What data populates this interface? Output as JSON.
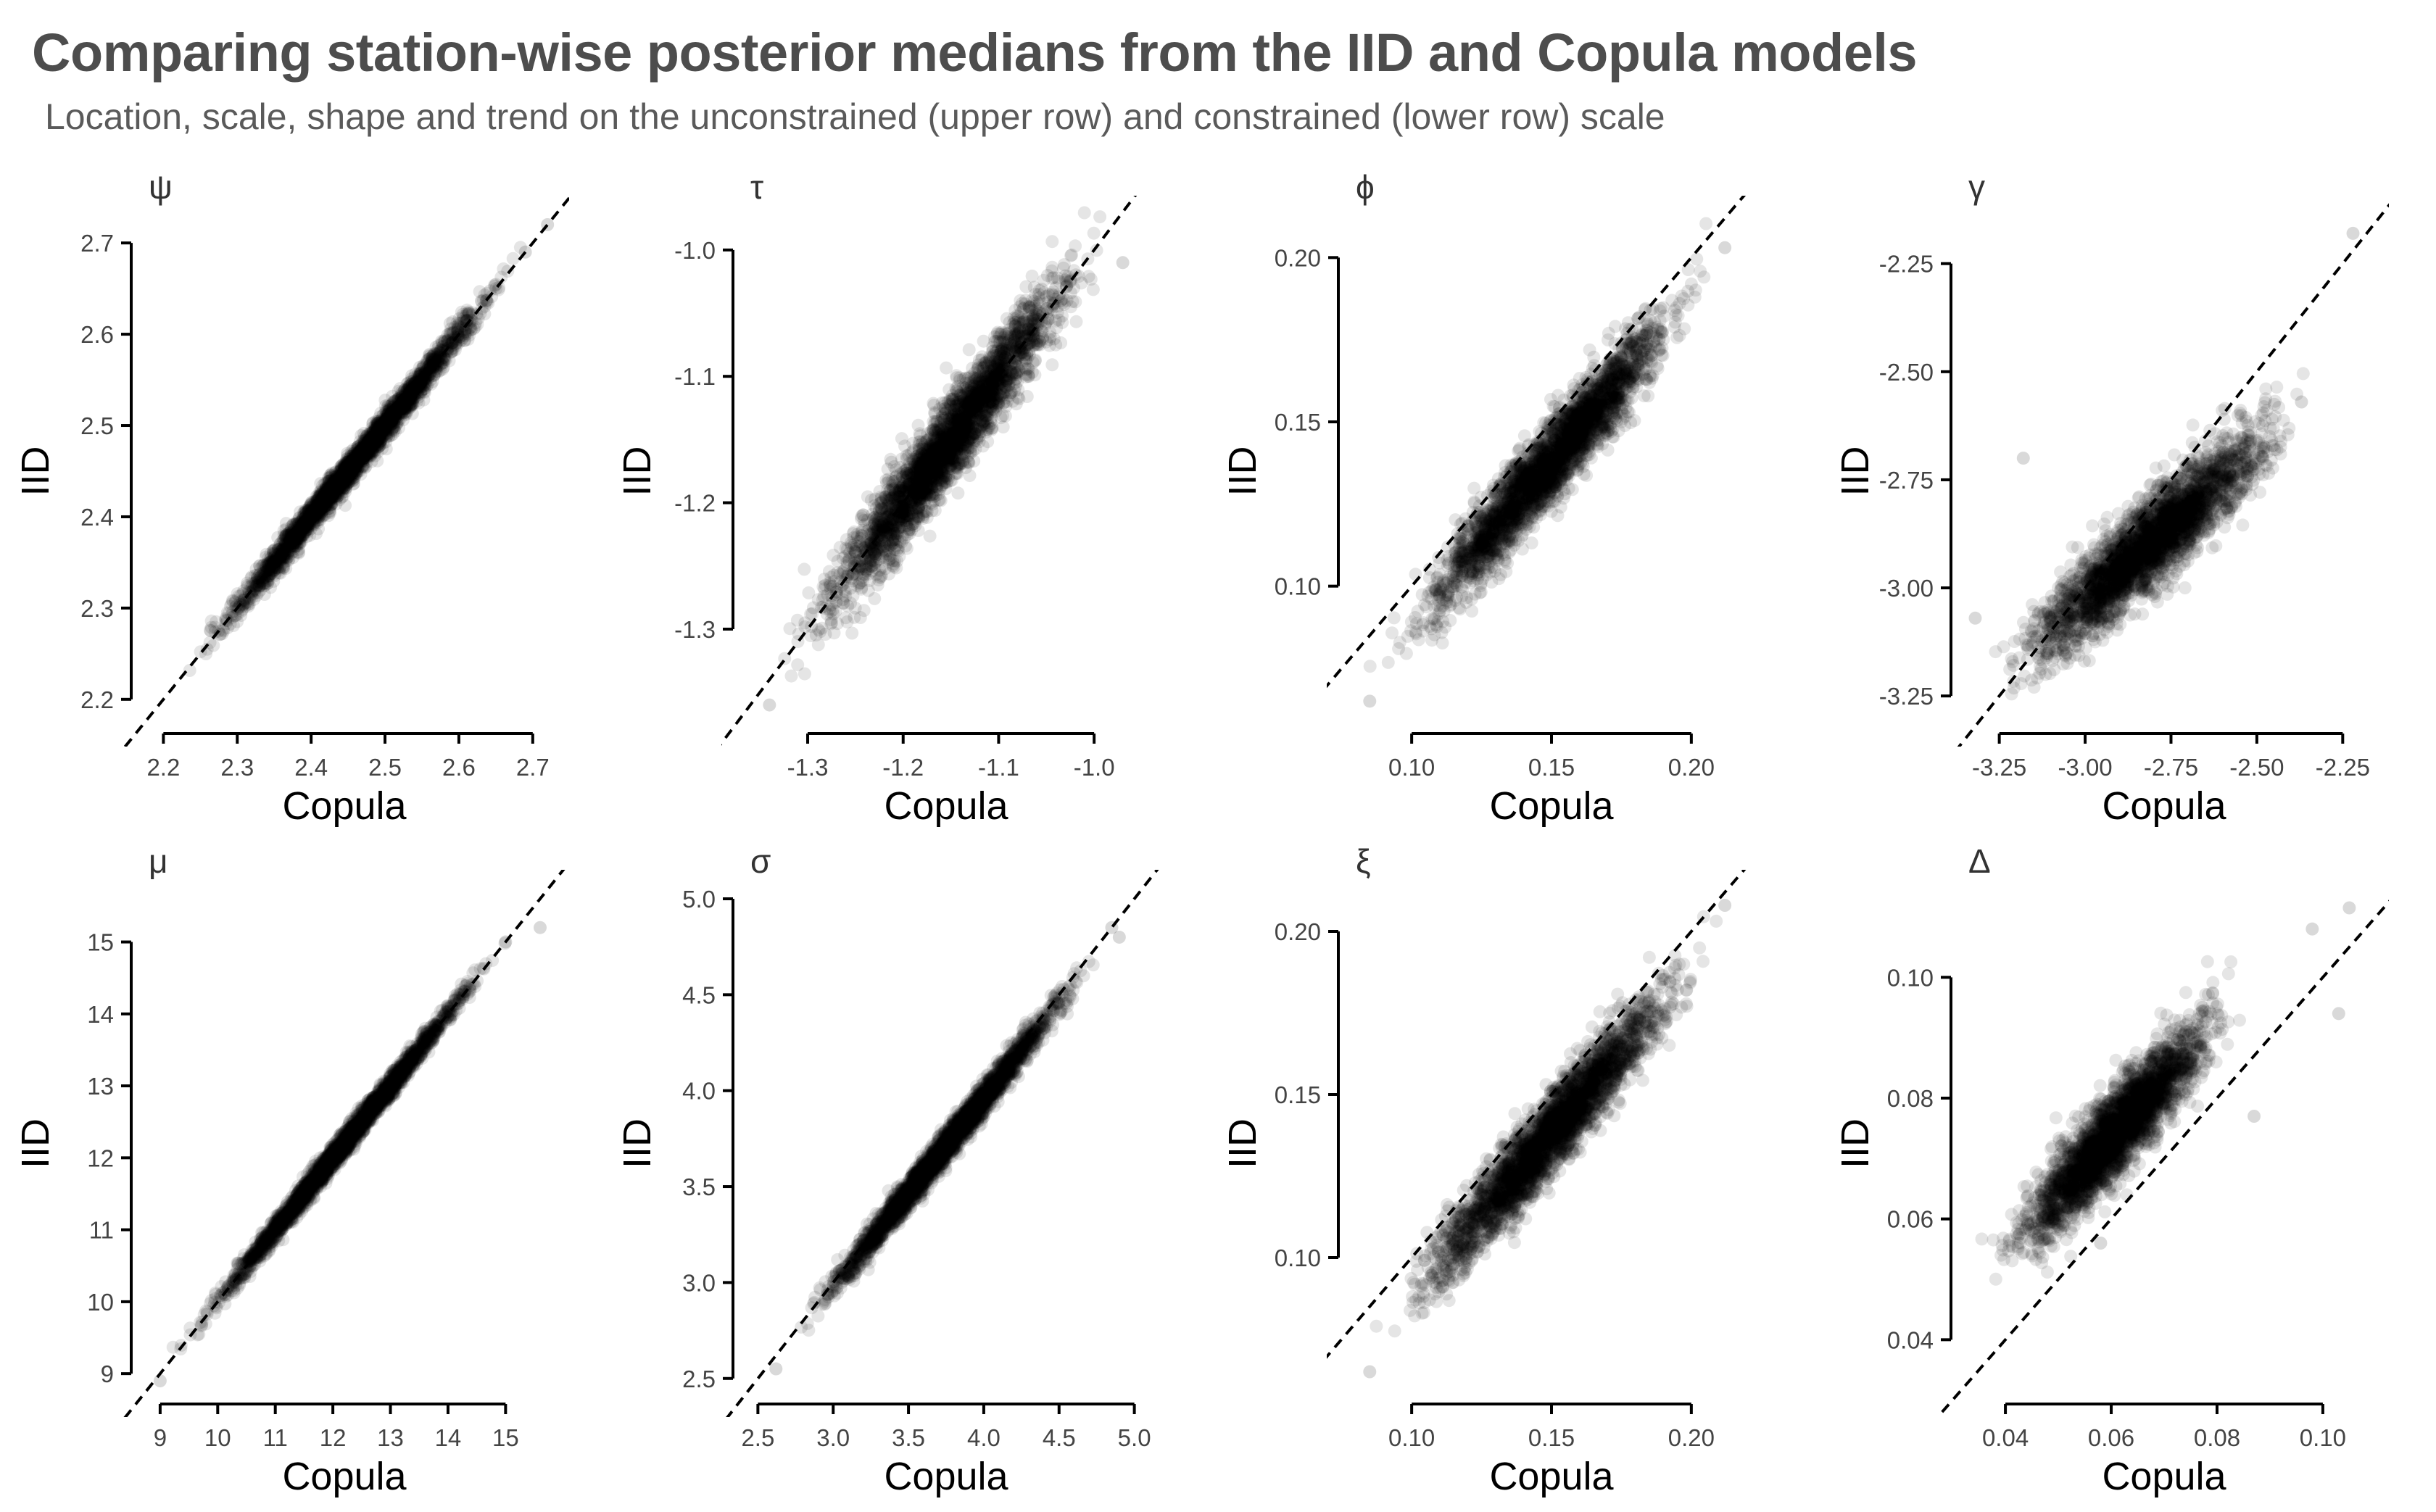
{
  "title": "Comparing station-wise posterior medians from the IID and Copula models",
  "subtitle": "Location, scale, shape and trend on the unconstrained (upper row) and constrained (lower row) scale",
  "chart_data": [
    {
      "type": "scatter",
      "panel_title": "ψ",
      "xlabel": "Copula",
      "ylabel": "IID",
      "xlim": [
        2.18,
        2.71
      ],
      "ylim": [
        2.18,
        2.72
      ],
      "xticks": [
        2.2,
        2.3,
        2.4,
        2.5,
        2.6,
        2.7
      ],
      "yticks": [
        2.2,
        2.3,
        2.4,
        2.5,
        2.6,
        2.7
      ],
      "xtick_labels": [
        "2.2",
        "2.3",
        "2.4",
        "2.5",
        "2.6",
        "2.7"
      ],
      "ytick_labels": [
        "2.2",
        "2.3",
        "2.4",
        "2.5",
        "2.6",
        "2.7"
      ],
      "reference_line": "y = x (dashed)",
      "n_points_approx": 3000,
      "cloud": {
        "x_range": [
          2.2,
          2.72
        ],
        "fit": {
          "intercept": 0.0,
          "slope": 1.0
        },
        "spread_sd": 0.008
      },
      "outliers": [
        [
          2.72,
          2.72
        ],
        [
          2.69,
          2.69
        ]
      ]
    },
    {
      "type": "scatter",
      "panel_title": "τ",
      "xlabel": "Copula",
      "ylabel": "IID",
      "xlim": [
        -1.36,
        -0.95
      ],
      "ylim": [
        -1.37,
        -0.98
      ],
      "xticks": [
        -1.3,
        -1.2,
        -1.1,
        -1.0
      ],
      "yticks": [
        -1.3,
        -1.2,
        -1.1,
        -1.0
      ],
      "xtick_labels": [
        "-1.3",
        "-1.2",
        "-1.1",
        "-1.0"
      ],
      "ytick_labels": [
        "-1.3",
        "-1.2",
        "-1.1",
        "-1.0"
      ],
      "reference_line": "y = x (dashed)",
      "n_points_approx": 3000,
      "cloud": {
        "x_range": [
          -1.34,
          -0.97
        ],
        "fit": {
          "intercept": 0.0,
          "slope": 1.0
        },
        "spread_sd": 0.016
      },
      "outliers": [
        [
          -0.97,
          -1.01
        ],
        [
          -1.34,
          -1.36
        ]
      ]
    },
    {
      "type": "scatter",
      "panel_title": "ϕ",
      "xlabel": "Copula",
      "ylabel": "IID",
      "xlim": [
        0.08,
        0.22
      ],
      "ylim": [
        0.06,
        0.21
      ],
      "xticks": [
        0.1,
        0.15,
        0.2
      ],
      "yticks": [
        0.1,
        0.15,
        0.2
      ],
      "xtick_labels": [
        "0.10",
        "0.15",
        "0.20"
      ],
      "ytick_labels": [
        "0.10",
        "0.15",
        "0.20"
      ],
      "reference_line": "y = x (dashed)",
      "n_points_approx": 3000,
      "cloud": {
        "x_range": [
          0.085,
          0.213
        ],
        "fit": {
          "intercept": -0.012,
          "slope": 1.0
        },
        "spread_sd": 0.006
      },
      "outliers": [
        [
          0.212,
          0.203
        ],
        [
          0.085,
          0.065
        ]
      ]
    },
    {
      "type": "scatter",
      "panel_title": "γ",
      "xlabel": "Copula",
      "ylabel": "IID",
      "xlim": [
        -3.34,
        -2.2
      ],
      "ylim": [
        -3.3,
        -2.16
      ],
      "xticks": [
        -3.25,
        -3.0,
        -2.75,
        -2.5,
        -2.25
      ],
      "yticks": [
        -3.25,
        -3.0,
        -2.75,
        -2.5,
        -2.25
      ],
      "xtick_labels": [
        "-3.25",
        "-3.00",
        "-2.75",
        "-2.50",
        "-2.25"
      ],
      "ytick_labels": [
        "-3.25",
        "-3.00",
        "-2.75",
        "-2.50",
        "-2.25"
      ],
      "reference_line": "y = x (dashed)",
      "n_points_approx": 3000,
      "cloud": {
        "x_range": [
          -3.33,
          -2.3
        ],
        "fit": {
          "intercept": -0.93,
          "slope": 0.7
        },
        "spread_sd": 0.05
      },
      "outliers": [
        [
          -2.22,
          -2.18
        ],
        [
          -3.32,
          -3.07
        ],
        [
          -2.37,
          -2.57
        ],
        [
          -2.7,
          -2.8
        ],
        [
          -3.18,
          -2.7
        ]
      ]
    },
    {
      "type": "scatter",
      "panel_title": "μ",
      "xlabel": "Copula",
      "ylabel": "IID",
      "xlim": [
        8.8,
        15.6
      ],
      "ylim": [
        8.8,
        15.6
      ],
      "xticks": [
        9,
        10,
        11,
        12,
        13,
        14,
        15
      ],
      "yticks": [
        9,
        10,
        11,
        12,
        13,
        14,
        15
      ],
      "xtick_labels": [
        "9",
        "10",
        "11",
        "12",
        "13",
        "14",
        "15"
      ],
      "ytick_labels": [
        "9",
        "10",
        "11",
        "12",
        "13",
        "14",
        "15"
      ],
      "reference_line": "y = x (dashed)",
      "n_points_approx": 3000,
      "cloud": {
        "x_range": [
          9.0,
          15.3
        ],
        "fit": {
          "intercept": 0.0,
          "slope": 1.0
        },
        "spread_sd": 0.08
      },
      "outliers": [
        [
          15.6,
          15.2
        ],
        [
          15.0,
          15.0
        ],
        [
          9.0,
          8.9
        ]
      ]
    },
    {
      "type": "scatter",
      "panel_title": "σ",
      "xlabel": "Copula",
      "ylabel": "IID",
      "xlim": [
        2.45,
        5.05
      ],
      "ylim": [
        2.45,
        5.0
      ],
      "xticks": [
        2.5,
        3.0,
        3.5,
        4.0,
        4.5,
        5.0
      ],
      "yticks": [
        2.5,
        3.0,
        3.5,
        4.0,
        4.5,
        5.0
      ],
      "xtick_labels": [
        "2.5",
        "3.0",
        "3.5",
        "4.0",
        "4.5",
        "5.0"
      ],
      "ytick_labels": [
        "2.5",
        "3.0",
        "3.5",
        "4.0",
        "4.5",
        "5.0"
      ],
      "reference_line": "y = x (dashed)",
      "n_points_approx": 3000,
      "cloud": {
        "x_range": [
          2.62,
          4.85
        ],
        "fit": {
          "intercept": 0.0,
          "slope": 0.99
        },
        "spread_sd": 0.04
      },
      "outliers": [
        [
          4.85,
          4.85
        ],
        [
          4.9,
          4.8
        ],
        [
          2.62,
          2.55
        ]
      ]
    },
    {
      "type": "scatter",
      "panel_title": "ξ",
      "xlabel": "Copula",
      "ylabel": "IID",
      "xlim": [
        0.08,
        0.22
      ],
      "ylim": [
        0.06,
        0.21
      ],
      "xticks": [
        0.1,
        0.15,
        0.2
      ],
      "yticks": [
        0.1,
        0.15,
        0.2
      ],
      "xtick_labels": [
        "0.10",
        "0.15",
        "0.20"
      ],
      "ytick_labels": [
        "0.10",
        "0.15",
        "0.20"
      ],
      "reference_line": "y = x (dashed)",
      "n_points_approx": 3000,
      "cloud": {
        "x_range": [
          0.085,
          0.213
        ],
        "fit": {
          "intercept": -0.012,
          "slope": 1.0
        },
        "spread_sd": 0.006
      },
      "outliers": [
        [
          0.212,
          0.208
        ],
        [
          0.085,
          0.065
        ]
      ]
    },
    {
      "type": "scatter",
      "panel_title": "Δ",
      "xlabel": "Copula",
      "ylabel": "IID",
      "xlim": [
        0.033,
        0.107
      ],
      "ylim": [
        0.032,
        0.113
      ],
      "xticks": [
        0.04,
        0.06,
        0.08,
        0.1
      ],
      "yticks": [
        0.04,
        0.06,
        0.08,
        0.1
      ],
      "xtick_labels": [
        "0.04",
        "0.06",
        "0.08",
        "0.10"
      ],
      "ytick_labels": [
        "0.04",
        "0.06",
        "0.08",
        "0.10"
      ],
      "reference_line": "y = x (dashed)",
      "n_points_approx": 3000,
      "cloud": {
        "x_range": [
          0.035,
          0.087
        ],
        "fit": {
          "intercept": 0.0165,
          "slope": 0.95
        },
        "spread_sd": 0.0035
      },
      "outliers": [
        [
          0.105,
          0.1115
        ],
        [
          0.103,
          0.094
        ],
        [
          0.098,
          0.108
        ],
        [
          0.087,
          0.077
        ],
        [
          0.058,
          0.056
        ]
      ]
    }
  ]
}
